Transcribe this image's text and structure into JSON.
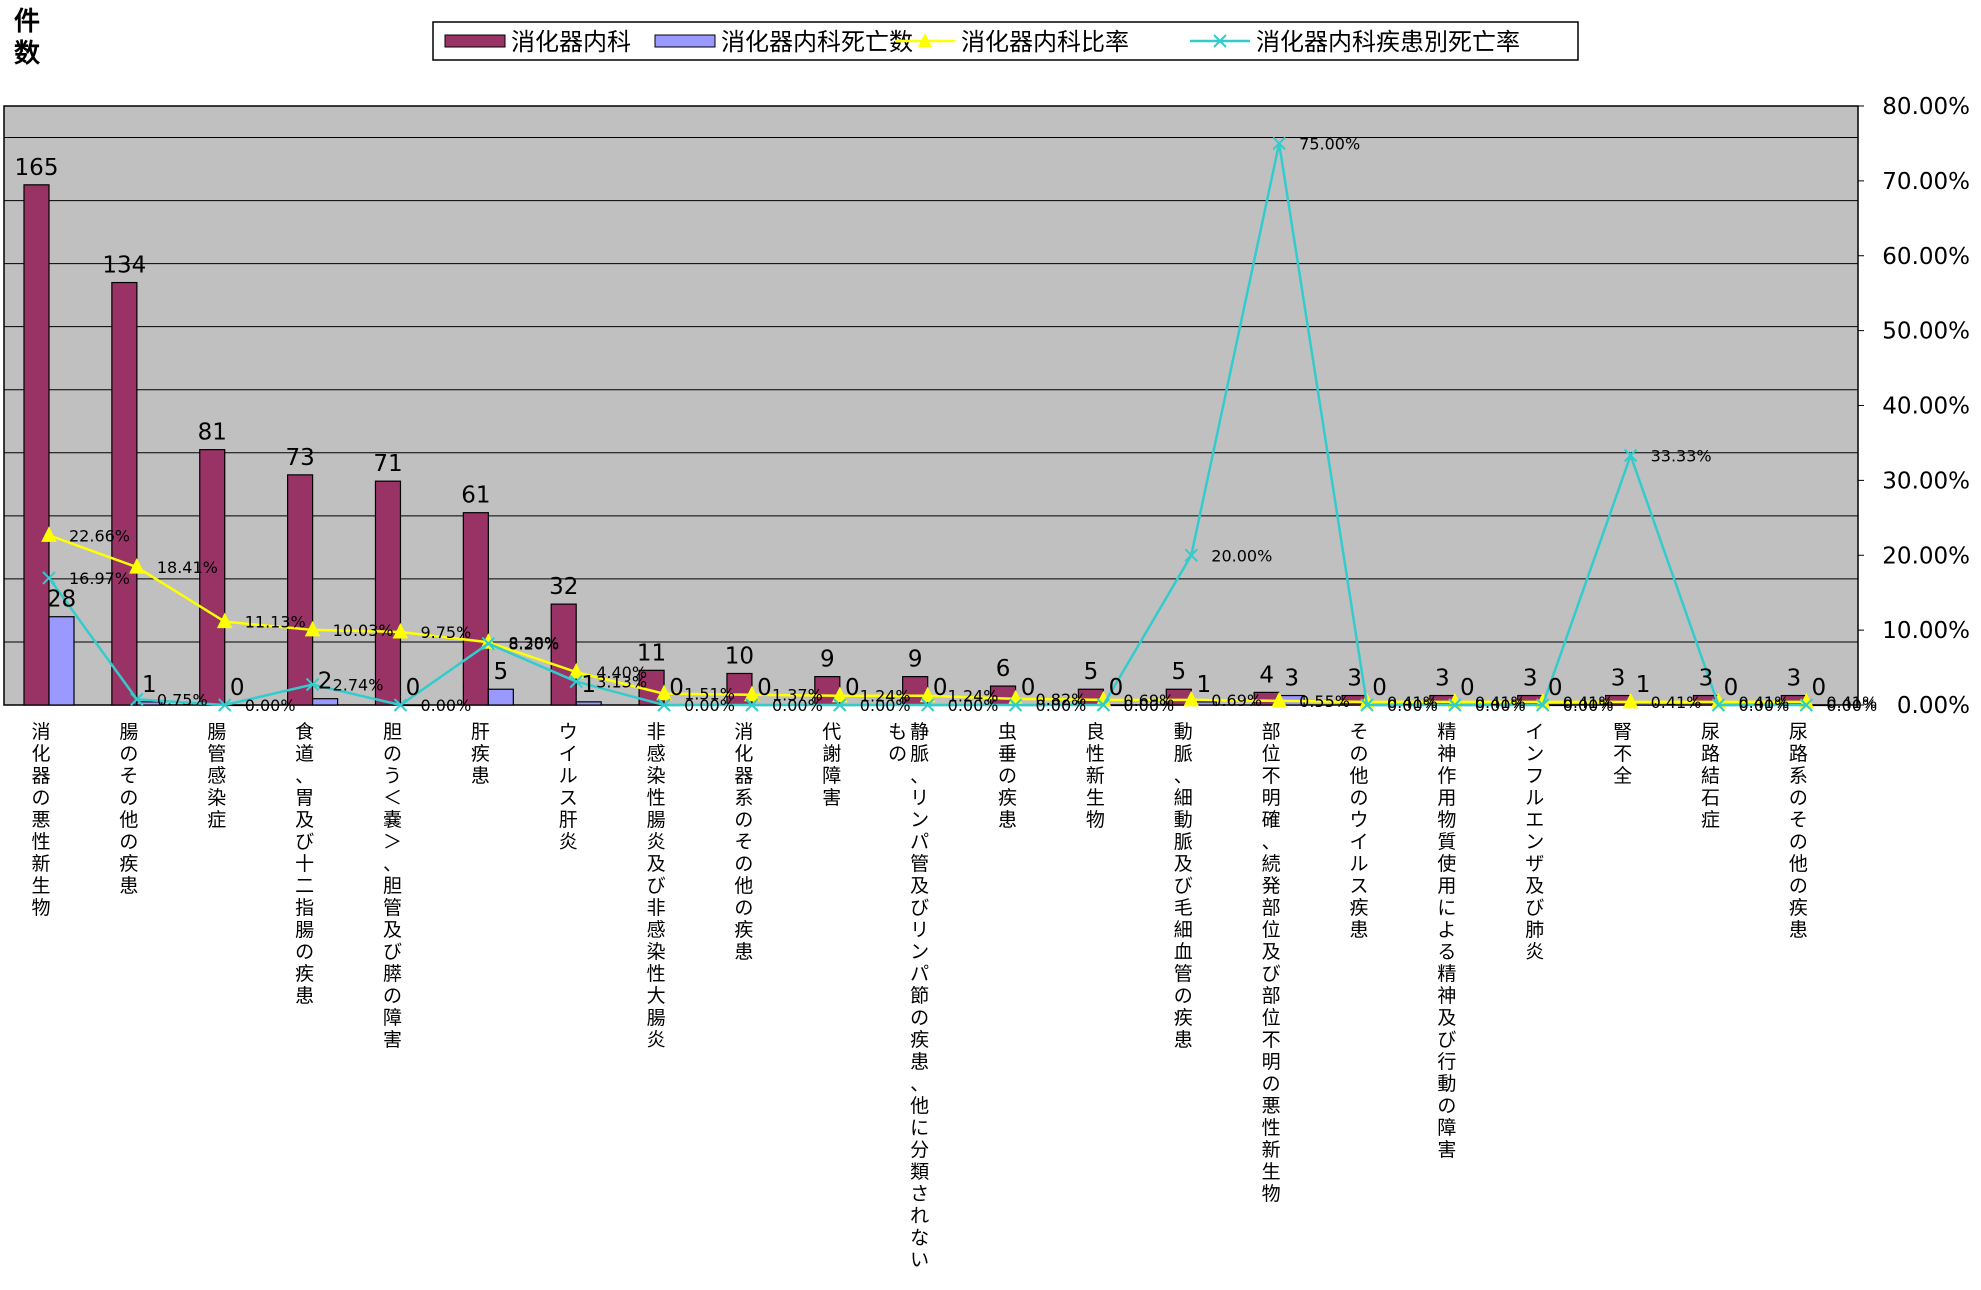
{
  "chart_data": {
    "type": "bar",
    "y_left_label": "件\n数",
    "y_left_range": [
      0,
      190
    ],
    "y_left_grid_step": 20,
    "y_right_range": [
      0,
      0.8
    ],
    "y_right_ticks": [
      "0.00%",
      "10.00%",
      "20.00%",
      "30.00%",
      "40.00%",
      "50.00%",
      "60.00%",
      "70.00%",
      "80.00%"
    ],
    "grid": true,
    "legend_position": "top",
    "categories": [
      "消化器の悪性新生物",
      "腸のその他の疾患",
      "腸管感染症",
      "食道、胃及び十二指腸の疾患",
      "胆のう＜嚢＞、胆管及び膵の障害",
      "肝疾患",
      "ウイルス肝炎",
      "非感染性腸炎及び非感染性大腸炎",
      "消化器系のその他の疾患",
      "代謝障害",
      "静脈、リンパ管及びリンパ節の疾患、他に分類されないもの",
      "虫垂の疾患",
      "良性新生物",
      "動脈、細動脈及び毛細血管の疾患",
      "部位不明確、続発部位及び部位不明の悪性新生物",
      "その他のウイルス疾患",
      "精神作用物質使用による精神及び行動の障害",
      "インフルエンザ及び肺炎",
      "腎不全",
      "尿路結石症",
      "尿路系のその他の疾患"
    ],
    "series": [
      {
        "name": "消化器内科",
        "kind": "bar",
        "axis": "left",
        "color": "#993366",
        "values": [
          165,
          134,
          81,
          73,
          71,
          61,
          32,
          11,
          10,
          9,
          9,
          6,
          5,
          5,
          4,
          3,
          3,
          3,
          3,
          3,
          3
        ],
        "labels": [
          "165",
          "134",
          "81",
          "73",
          "71",
          "61",
          "32",
          "11",
          "10",
          "9",
          "9",
          "6",
          "5",
          "5",
          "4",
          "3",
          "3",
          "3",
          "3",
          "3",
          "3"
        ]
      },
      {
        "name": "消化器内科死亡数",
        "kind": "bar",
        "axis": "left",
        "color": "#9999ff",
        "values": [
          28,
          1,
          0,
          2,
          0,
          5,
          1,
          0,
          0,
          0,
          0,
          0,
          0,
          1,
          3,
          0,
          0,
          0,
          1,
          0,
          0
        ],
        "labels": [
          "28",
          "1",
          "0",
          "2",
          "0",
          "5",
          "1",
          "0",
          "0",
          "0",
          "0",
          "0",
          "0",
          "1",
          "3",
          "0",
          "0",
          "0",
          "1",
          "0",
          "0"
        ]
      },
      {
        "name": "消化器内科比率",
        "kind": "line",
        "axis": "right",
        "color": "#ffff00",
        "marker": "triangle",
        "values": [
          0.2266,
          0.1841,
          0.1113,
          0.1003,
          0.0975,
          0.0838,
          0.044,
          0.0151,
          0.0137,
          0.0124,
          0.0124,
          0.0082,
          0.0069,
          0.0069,
          0.0055,
          0.0041,
          0.0041,
          0.0041,
          0.0041,
          0.0041,
          0.0041
        ],
        "labels": [
          "22.66%",
          "18.41%",
          "11.13%",
          "10.03%",
          "9.75%",
          "8.38%",
          "4.40%",
          "1.51%",
          "1.37%",
          "1.24%",
          "1.24%",
          "0.82%",
          "0.69%",
          "0.69%",
          "0.55%",
          "0.41%",
          "0.41%",
          "0.41%",
          "0.41%",
          "0.41%",
          "0.41%"
        ]
      },
      {
        "name": "消化器内科疾患別死亡率",
        "kind": "line",
        "axis": "right",
        "color": "#33cccc",
        "marker": "x",
        "values": [
          0.1697,
          0.0075,
          0.0,
          0.0274,
          0.0,
          0.082,
          0.0313,
          0.0,
          0.0,
          0.0,
          0.0,
          0.0,
          0.0,
          0.2,
          0.75,
          0.0,
          0.0,
          0.0,
          0.3333,
          0.0,
          0.0
        ],
        "labels": [
          "16.97%",
          "0.75%",
          "0.00%",
          "2.74%",
          "0.00%",
          "8.20%",
          "3.13%",
          "0.00%",
          "0.00%",
          "0.00%",
          "0.00%",
          "0.00%",
          "0.00%",
          "20.00%",
          "75.00%",
          "0.00%",
          "0.00%",
          "0.00%",
          "33.33%",
          "0.00%",
          "0.00%"
        ]
      }
    ]
  }
}
